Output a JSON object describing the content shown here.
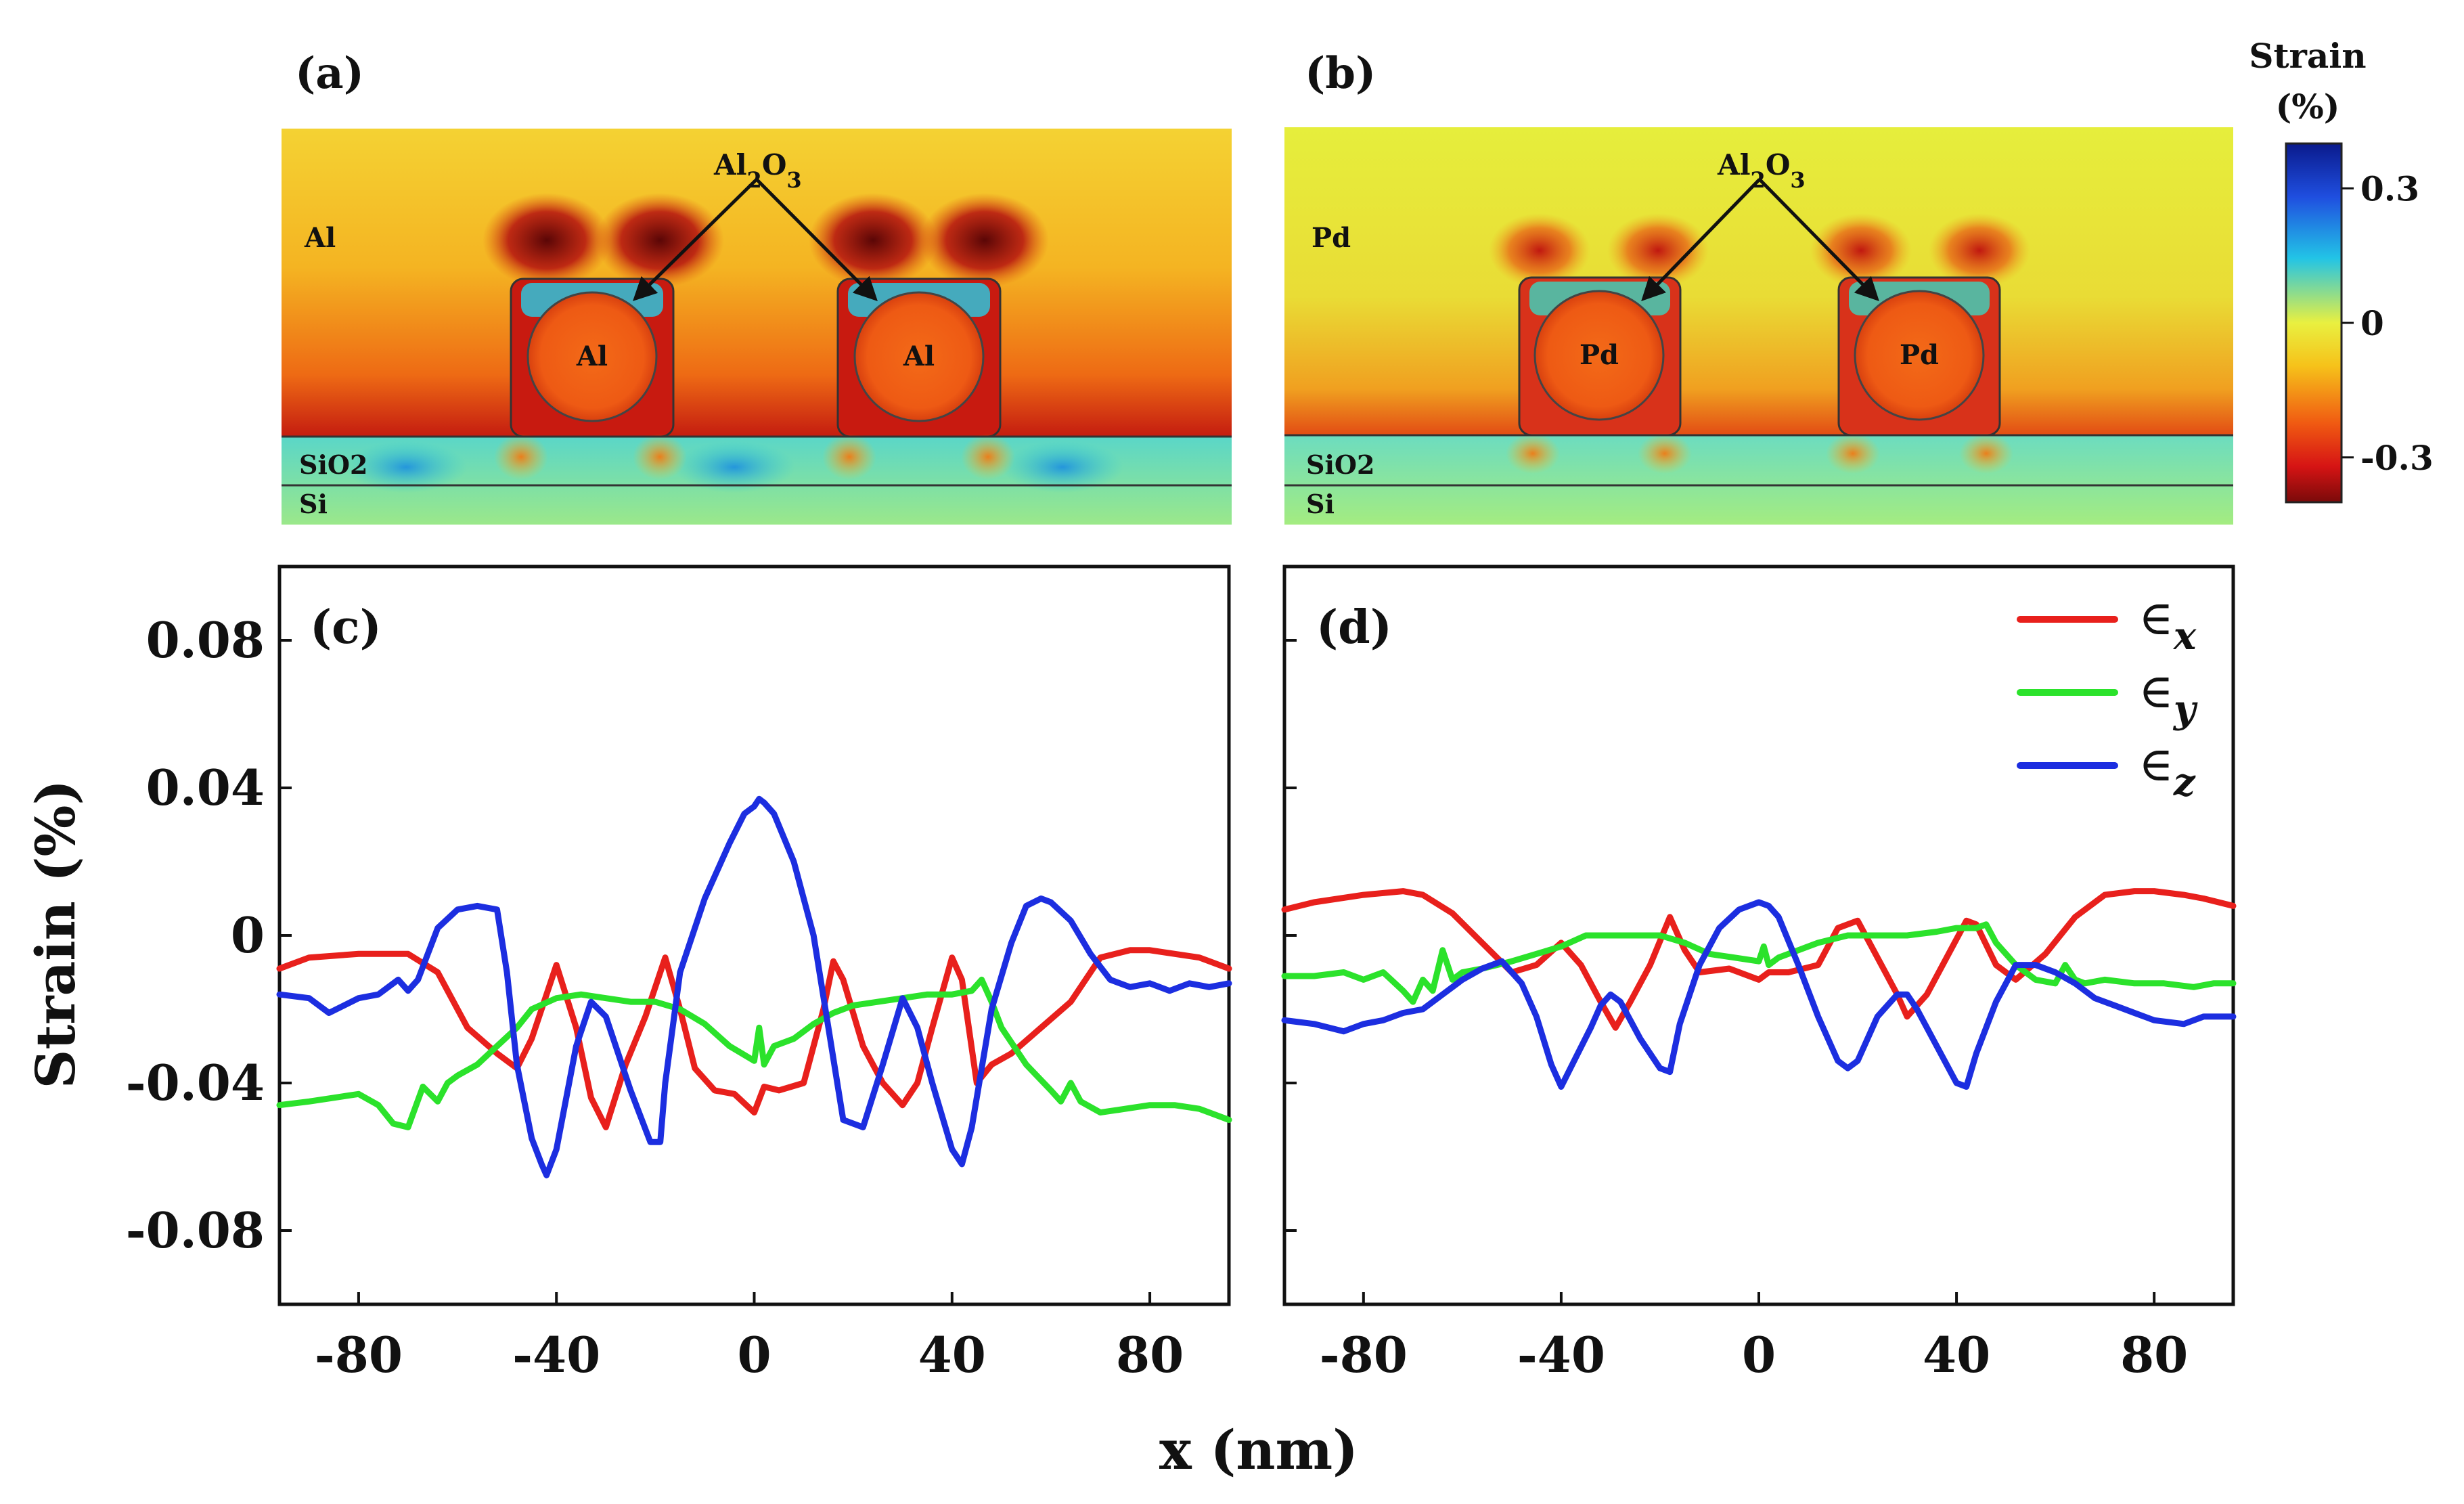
{
  "figure": {
    "panel_a": {
      "label": "(a)",
      "metal": "Al",
      "oxide_main": "Al",
      "oxide_sub1": "2",
      "oxide_mid": "O",
      "oxide_sub2": "3",
      "substrate_oxide": "SiO2",
      "substrate": "Si"
    },
    "panel_b": {
      "label": "(b)",
      "metal": "Pd",
      "oxide_main": "Al",
      "oxide_sub1": "2",
      "oxide_mid": "O",
      "oxide_sub2": "3",
      "substrate_oxide": "SiO2",
      "substrate": "Si"
    },
    "colorbar": {
      "title_line1": "Strain",
      "title_line2": "(%)",
      "ticks": [
        "0.3",
        "0",
        "-0.3"
      ],
      "tick_values": [
        0.3,
        0,
        -0.3
      ],
      "range": [
        -0.4,
        0.4
      ]
    },
    "colors": {
      "ex": "#e8201c",
      "ey": "#2be22b",
      "ez": "#1c2ee0"
    }
  },
  "chart_data": [
    {
      "type": "line",
      "panel": "(c)",
      "xlabel": "x (nm)",
      "ylabel": "Strain (%)",
      "xlim": [
        -96,
        96
      ],
      "ylim": [
        -0.1,
        0.1
      ],
      "xticks": [
        -80,
        -40,
        0,
        40,
        80
      ],
      "yticks": [
        0.08,
        0.04,
        0,
        -0.04,
        -0.08
      ],
      "ytick_labels": [
        "0.08",
        "0.04",
        "0",
        "-0.04",
        "-0.08"
      ],
      "series": [
        {
          "key": "ex",
          "x": [
            -96,
            -90,
            -80,
            -70,
            -64,
            -58,
            -52,
            -48,
            -45,
            -40,
            -36,
            -33,
            -30,
            -26,
            -22,
            -18,
            -15,
            -12,
            -8,
            -4,
            0,
            2,
            5,
            10,
            14,
            16,
            18,
            22,
            26,
            30,
            33,
            36,
            40,
            42,
            45,
            48,
            52,
            58,
            64,
            70,
            76,
            80,
            90,
            96
          ],
          "y": [
            -0.009,
            -0.006,
            -0.005,
            -0.005,
            -0.01,
            -0.025,
            -0.032,
            -0.036,
            -0.028,
            -0.008,
            -0.025,
            -0.044,
            -0.052,
            -0.035,
            -0.022,
            -0.006,
            -0.02,
            -0.036,
            -0.042,
            -0.043,
            -0.048,
            -0.041,
            -0.042,
            -0.04,
            -0.02,
            -0.007,
            -0.012,
            -0.03,
            -0.04,
            -0.046,
            -0.04,
            -0.025,
            -0.006,
            -0.012,
            -0.04,
            -0.035,
            -0.032,
            -0.025,
            -0.018,
            -0.006,
            -0.004,
            -0.004,
            -0.006,
            -0.009
          ]
        },
        {
          "key": "ey",
          "x": [
            -96,
            -90,
            -85,
            -80,
            -76,
            -73,
            -70,
            -67,
            -64,
            -62,
            -60,
            -56,
            -52,
            -48,
            -45,
            -40,
            -35,
            -30,
            -25,
            -20,
            -15,
            -10,
            -5,
            0,
            1,
            2,
            4,
            8,
            12,
            16,
            20,
            25,
            30,
            35,
            40,
            44,
            46,
            48,
            50,
            55,
            60,
            62,
            64,
            66,
            70,
            75,
            80,
            85,
            90,
            96
          ],
          "y": [
            -0.046,
            -0.045,
            -0.044,
            -0.043,
            -0.046,
            -0.051,
            -0.052,
            -0.041,
            -0.045,
            -0.04,
            -0.038,
            -0.035,
            -0.03,
            -0.025,
            -0.02,
            -0.017,
            -0.016,
            -0.017,
            -0.018,
            -0.018,
            -0.02,
            -0.024,
            -0.03,
            -0.034,
            -0.025,
            -0.035,
            -0.03,
            -0.028,
            -0.024,
            -0.021,
            -0.019,
            -0.018,
            -0.017,
            -0.016,
            -0.016,
            -0.015,
            -0.012,
            -0.018,
            -0.025,
            -0.035,
            -0.042,
            -0.045,
            -0.04,
            -0.045,
            -0.048,
            -0.047,
            -0.046,
            -0.046,
            -0.047,
            -0.05
          ]
        },
        {
          "key": "ez",
          "x": [
            -96,
            -90,
            -86,
            -80,
            -76,
            -72,
            -70,
            -68,
            -64,
            -60,
            -56,
            -52,
            -50,
            -48,
            -45,
            -43,
            -42,
            -40,
            -36,
            -33,
            -30,
            -25,
            -21,
            -19,
            -18,
            -15,
            -10,
            -5,
            -2,
            0,
            1,
            2,
            4,
            8,
            12,
            15,
            18,
            22,
            26,
            30,
            33,
            36,
            40,
            42,
            44,
            48,
            52,
            55,
            58,
            60,
            64,
            68,
            72,
            76,
            80,
            84,
            88,
            92,
            96
          ],
          "y": [
            -0.016,
            -0.017,
            -0.021,
            -0.017,
            -0.016,
            -0.012,
            -0.015,
            -0.012,
            0.002,
            0.007,
            0.008,
            0.007,
            -0.01,
            -0.035,
            -0.055,
            -0.062,
            -0.065,
            -0.058,
            -0.03,
            -0.018,
            -0.022,
            -0.042,
            -0.056,
            -0.056,
            -0.04,
            -0.01,
            0.01,
            0.025,
            0.033,
            0.035,
            0.037,
            0.036,
            0.033,
            0.02,
            0.0,
            -0.025,
            -0.05,
            -0.052,
            -0.035,
            -0.017,
            -0.025,
            -0.04,
            -0.058,
            -0.062,
            -0.052,
            -0.02,
            -0.002,
            0.008,
            0.01,
            0.009,
            0.004,
            -0.005,
            -0.012,
            -0.014,
            -0.013,
            -0.015,
            -0.013,
            -0.014,
            -0.013
          ]
        }
      ]
    },
    {
      "type": "line",
      "panel": "(d)",
      "xlabel": "x (nm)",
      "ylabel": "Strain (%)",
      "xlim": [
        -96,
        96
      ],
      "ylim": [
        -0.1,
        0.1
      ],
      "xticks": [
        -80,
        -40,
        0,
        40,
        80
      ],
      "yticks": [
        0.08,
        0.04,
        0,
        -0.04,
        -0.08
      ],
      "legend_placement": "top-right",
      "legend": [
        {
          "key": "ex",
          "symbol": "∈",
          "sub": "x"
        },
        {
          "key": "ey",
          "symbol": "∈",
          "sub": "y"
        },
        {
          "key": "ez",
          "symbol": "∈",
          "sub": "z"
        }
      ],
      "series": [
        {
          "key": "ex",
          "x": [
            -96,
            -90,
            -80,
            -72,
            -68,
            -62,
            -56,
            -50,
            -45,
            -40,
            -36,
            -32,
            -29,
            -26,
            -22,
            -18,
            -15,
            -12,
            -6,
            0,
            2,
            6,
            12,
            16,
            20,
            24,
            28,
            30,
            34,
            38,
            42,
            44,
            48,
            52,
            58,
            64,
            70,
            76,
            80,
            86,
            90,
            96
          ],
          "y": [
            0.007,
            0.009,
            0.011,
            0.012,
            0.011,
            0.006,
            -0.002,
            -0.01,
            -0.008,
            -0.002,
            -0.008,
            -0.018,
            -0.025,
            -0.018,
            -0.008,
            0.005,
            -0.004,
            -0.01,
            -0.009,
            -0.012,
            -0.01,
            -0.01,
            -0.008,
            0.002,
            0.004,
            -0.006,
            -0.016,
            -0.022,
            -0.016,
            -0.006,
            0.004,
            0.003,
            -0.008,
            -0.012,
            -0.005,
            0.005,
            0.011,
            0.012,
            0.012,
            0.011,
            0.01,
            0.008
          ]
        },
        {
          "key": "ey",
          "x": [
            -96,
            -90,
            -84,
            -80,
            -76,
            -72,
            -70,
            -68,
            -66,
            -64,
            -62,
            -60,
            -56,
            -50,
            -45,
            -40,
            -35,
            -30,
            -25,
            -20,
            -15,
            -10,
            -5,
            0,
            1,
            2,
            4,
            8,
            12,
            18,
            24,
            30,
            36,
            40,
            44,
            46,
            48,
            52,
            56,
            60,
            62,
            64,
            66,
            70,
            76,
            82,
            88,
            92,
            96
          ],
          "y": [
            -0.011,
            -0.011,
            -0.01,
            -0.012,
            -0.01,
            -0.015,
            -0.018,
            -0.012,
            -0.015,
            -0.004,
            -0.012,
            -0.01,
            -0.009,
            -0.007,
            -0.005,
            -0.003,
            0.0,
            0.0,
            0.0,
            0.0,
            -0.002,
            -0.005,
            -0.006,
            -0.007,
            -0.003,
            -0.008,
            -0.006,
            -0.004,
            -0.002,
            0.0,
            0.0,
            0.0,
            0.001,
            0.002,
            0.002,
            0.003,
            -0.002,
            -0.008,
            -0.012,
            -0.013,
            -0.008,
            -0.012,
            -0.013,
            -0.012,
            -0.013,
            -0.013,
            -0.014,
            -0.013,
            -0.013
          ]
        },
        {
          "key": "ez",
          "x": [
            -96,
            -90,
            -84,
            -80,
            -76,
            -72,
            -68,
            -64,
            -60,
            -56,
            -52,
            -48,
            -45,
            -42,
            -40,
            -37,
            -34,
            -32,
            -30,
            -28,
            -24,
            -20,
            -18,
            -16,
            -12,
            -8,
            -4,
            0,
            2,
            4,
            8,
            12,
            16,
            18,
            20,
            24,
            28,
            30,
            32,
            36,
            40,
            42,
            44,
            48,
            52,
            56,
            60,
            64,
            68,
            72,
            76,
            80,
            86,
            90,
            96
          ],
          "y": [
            -0.023,
            -0.024,
            -0.026,
            -0.024,
            -0.023,
            -0.021,
            -0.02,
            -0.016,
            -0.012,
            -0.009,
            -0.007,
            -0.013,
            -0.022,
            -0.035,
            -0.041,
            -0.033,
            -0.025,
            -0.019,
            -0.016,
            -0.018,
            -0.028,
            -0.036,
            -0.037,
            -0.024,
            -0.008,
            0.002,
            0.007,
            0.009,
            0.008,
            0.005,
            -0.008,
            -0.022,
            -0.034,
            -0.036,
            -0.034,
            -0.022,
            -0.016,
            -0.016,
            -0.02,
            -0.03,
            -0.04,
            -0.041,
            -0.032,
            -0.018,
            -0.008,
            -0.008,
            -0.01,
            -0.013,
            -0.017,
            -0.019,
            -0.021,
            -0.023,
            -0.024,
            -0.022,
            -0.022
          ]
        }
      ]
    }
  ]
}
